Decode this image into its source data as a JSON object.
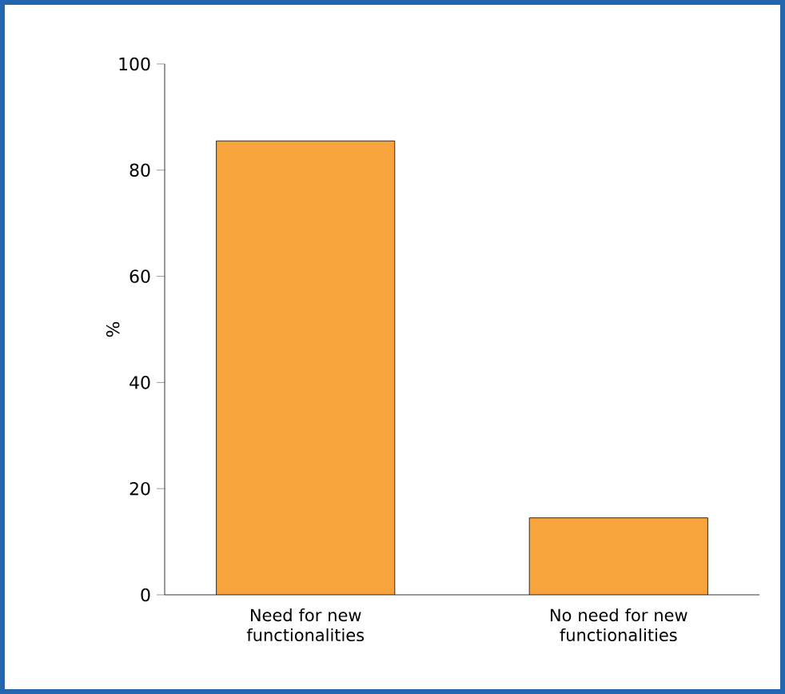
{
  "chart_data": {
    "type": "bar",
    "ylabel": "%",
    "categories": [
      "Need for new functionalities",
      "No need for new functionalities"
    ],
    "values": [
      85.5,
      14.5
    ],
    "color": "#f7a43c",
    "ylim": [
      0,
      100
    ],
    "yticks": [
      0,
      20,
      40,
      60,
      80,
      100
    ],
    "grid": false
  }
}
